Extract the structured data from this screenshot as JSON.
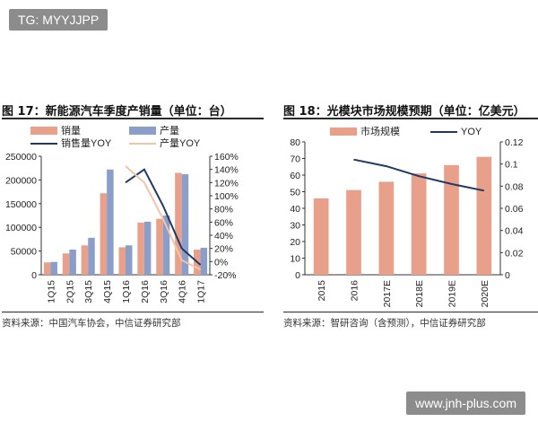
{
  "watermark_top": "TG: MYYJJPP",
  "watermark_bottom": "www.jnh-plus.com",
  "chart_data": [
    {
      "type": "bar",
      "title": "图 17：新能源汽车季度产销量（单位：台）",
      "source": "资料来源：中国汽车协会，中信证券研究部",
      "categories": [
        "1Q15",
        "2Q15",
        "3Q15",
        "4Q15",
        "1Q16",
        "2Q16",
        "3Q16",
        "4Q16",
        "1Q17"
      ],
      "series": [
        {
          "name": "销量",
          "kind": "bar",
          "axis": "left",
          "color": "#e9a08a",
          "values": [
            26000,
            45000,
            62000,
            172000,
            58000,
            110000,
            118000,
            215000,
            53000
          ]
        },
        {
          "name": "产量",
          "kind": "bar",
          "axis": "left",
          "color": "#8a9ec9",
          "values": [
            27000,
            53000,
            78000,
            222000,
            62000,
            112000,
            125000,
            212000,
            57000
          ]
        },
        {
          "name": "销售量YOY",
          "kind": "line",
          "axis": "right",
          "color": "#1f3864",
          "values": [
            null,
            null,
            null,
            null,
            120,
            140,
            85,
            20,
            -5
          ]
        },
        {
          "name": "产量YOY",
          "kind": "line",
          "axis": "right",
          "color": "#f2c4a8",
          "values": [
            null,
            null,
            null,
            null,
            145,
            120,
            65,
            2,
            -12
          ]
        }
      ],
      "ylim_left": [
        0,
        250000
      ],
      "left_ticks": [
        "0",
        "50000",
        "100000",
        "150000",
        "200000",
        "250000"
      ],
      "ylim_right": [
        -20,
        160
      ],
      "right_ticks": [
        "-20%",
        "0%",
        "20%",
        "40%",
        "60%",
        "80%",
        "100%",
        "120%",
        "140%",
        "160%"
      ],
      "legend": "top-left"
    },
    {
      "type": "bar",
      "title": "图 18：光模块市场规模预期（单位：亿美元）",
      "source": "资料来源：智研咨询（含预测），中信证券研究部",
      "categories": [
        "2015",
        "2016",
        "2017E",
        "2018E",
        "2019E",
        "2020E"
      ],
      "series": [
        {
          "name": "市场规模",
          "kind": "bar",
          "axis": "left",
          "color": "#e9a08a",
          "values": [
            46,
            51,
            56,
            61,
            66,
            71
          ]
        },
        {
          "name": "YOY",
          "kind": "line",
          "axis": "right",
          "color": "#1f3864",
          "values": [
            null,
            0.104,
            0.098,
            0.089,
            0.082,
            0.076
          ]
        }
      ],
      "ylim_left": [
        0,
        80
      ],
      "left_ticks": [
        "0",
        "10",
        "20",
        "30",
        "40",
        "50",
        "60",
        "70",
        "80"
      ],
      "ylim_right": [
        0,
        0.12
      ],
      "right_ticks": [
        "0",
        "0.02",
        "0.04",
        "0.06",
        "0.08",
        "0.1",
        "0.12"
      ],
      "legend": "top"
    }
  ]
}
